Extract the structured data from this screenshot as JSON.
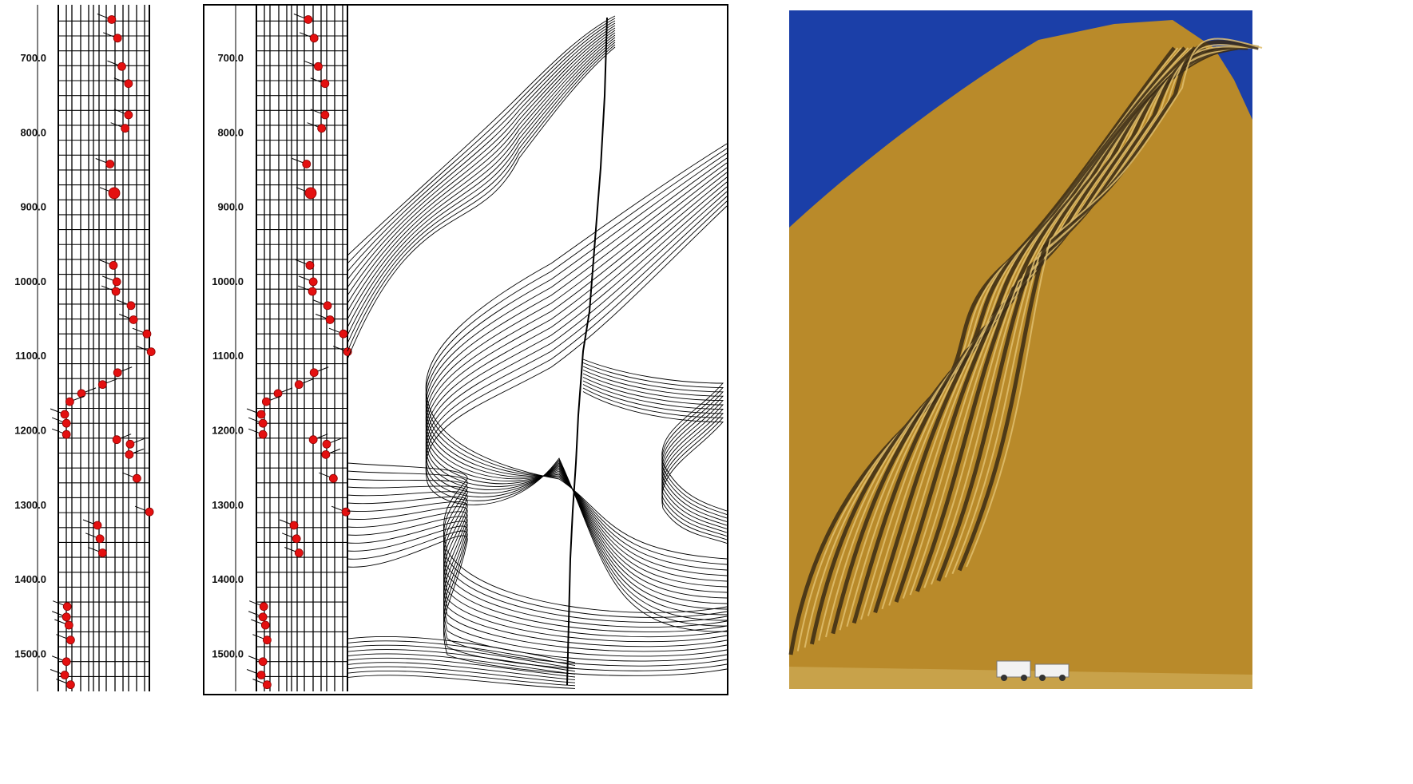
{
  "depth_axis": {
    "ticks": [
      700,
      800,
      900,
      1000,
      1100,
      1200,
      1300,
      1400,
      1500
    ],
    "tick_labels": [
      "700.0",
      "800.0",
      "900.0",
      "1000.0",
      "1100.0",
      "1200.0",
      "1300.0",
      "1400.0",
      "1500.0"
    ],
    "range": [
      643,
      1545
    ]
  },
  "dipmeter": {
    "marker_color": "#e41010",
    "tadpoles": [
      {
        "depth": 648,
        "x": 0.57,
        "dir": -1
      },
      {
        "depth": 673,
        "x": 0.64,
        "dir": -1
      },
      {
        "depth": 711,
        "x": 0.69,
        "dir": -1
      },
      {
        "depth": 734,
        "x": 0.77,
        "dir": -1
      },
      {
        "depth": 776,
        "x": 0.77,
        "dir": -1
      },
      {
        "depth": 794,
        "x": 0.73,
        "dir": -1
      },
      {
        "depth": 842,
        "x": 0.55,
        "dir": -1
      },
      {
        "depth": 881,
        "x": 0.6,
        "dir": -1,
        "big": true
      },
      {
        "depth": 978,
        "x": 0.59,
        "dir": -1
      },
      {
        "depth": 1000,
        "x": 0.63,
        "dir": -1
      },
      {
        "depth": 1013,
        "x": 0.62,
        "dir": -1
      },
      {
        "depth": 1032,
        "x": 0.8,
        "dir": -1
      },
      {
        "depth": 1051,
        "x": 0.83,
        "dir": -1
      },
      {
        "depth": 1070,
        "x": 0.99,
        "dir": -1
      },
      {
        "depth": 1094,
        "x": 1.04,
        "dir": -1
      },
      {
        "depth": 1122,
        "x": 0.64,
        "dir": 1
      },
      {
        "depth": 1138,
        "x": 0.46,
        "dir": 1
      },
      {
        "depth": 1150,
        "x": 0.21,
        "dir": 1
      },
      {
        "depth": 1161,
        "x": 0.07,
        "dir": 1
      },
      {
        "depth": 1178,
        "x": 0.01,
        "dir": -1
      },
      {
        "depth": 1190,
        "x": 0.03,
        "dir": -1
      },
      {
        "depth": 1205,
        "x": 0.03,
        "dir": -1
      },
      {
        "depth": 1212,
        "x": 0.63,
        "dir": 1
      },
      {
        "depth": 1218,
        "x": 0.79,
        "dir": 1
      },
      {
        "depth": 1232,
        "x": 0.78,
        "dir": 1
      },
      {
        "depth": 1264,
        "x": 0.87,
        "dir": -1
      },
      {
        "depth": 1309,
        "x": 1.02,
        "dir": -1
      },
      {
        "depth": 1327,
        "x": 0.4,
        "dir": -1
      },
      {
        "depth": 1345,
        "x": 0.43,
        "dir": -1
      },
      {
        "depth": 1364,
        "x": 0.46,
        "dir": -1
      },
      {
        "depth": 1436,
        "x": 0.04,
        "dir": -1
      },
      {
        "depth": 1450,
        "x": 0.03,
        "dir": -1
      },
      {
        "depth": 1461,
        "x": 0.06,
        "dir": -1
      },
      {
        "depth": 1481,
        "x": 0.08,
        "dir": -1
      },
      {
        "depth": 1510,
        "x": 0.03,
        "dir": -1
      },
      {
        "depth": 1528,
        "x": 0.01,
        "dir": -1
      },
      {
        "depth": 1541,
        "x": 0.08,
        "dir": -1
      }
    ]
  },
  "photo": {
    "sky_color": "#1b3fa8",
    "rock_color": "#b98a2a",
    "dark_band_color": "#3a2a14"
  }
}
